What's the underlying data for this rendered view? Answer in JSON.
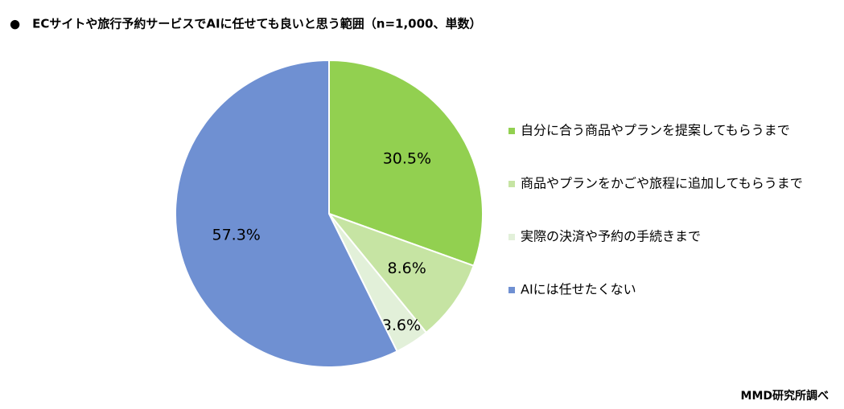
{
  "chart_data": {
    "type": "pie",
    "title": "●　ECサイトや旅行予約サービスでAIに任せても良いと思う範囲（n=1,000、単数）",
    "source": "MMD研究所調べ",
    "categories": [
      "自分に合う商品やプランを提案してもらうまで",
      "商品やプランをかごや旅程に追加してもらうまで",
      "実際の決済や予約の手続きまで",
      "AIには任せたくない"
    ],
    "values": [
      30.5,
      8.6,
      3.6,
      57.3
    ],
    "value_labels": [
      "30.5%",
      "8.6%",
      "3.6%",
      "57.3%"
    ],
    "colors": [
      "#92d050",
      "#c6e4a3",
      "#e2f0d9",
      "#6f90d2"
    ],
    "legend": "right"
  }
}
